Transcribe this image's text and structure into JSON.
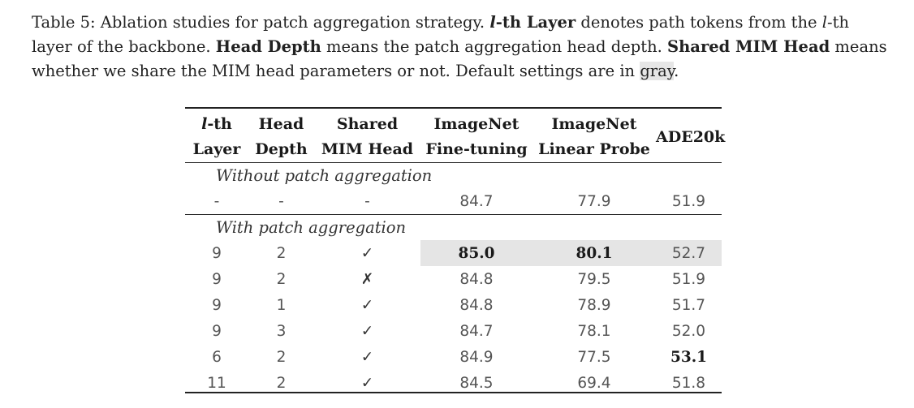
{
  "caption": {
    "label": "Table 5: Ablation studies for patch aggregation strategy.",
    "lth_italic": "l",
    "lth_bold_rest": "-th Layer",
    "part2a": " denotes path tokens from the ",
    "lth2_italic": "l",
    "part2b": "-th layer of the backbone. ",
    "head_depth": "Head Depth",
    "part3": " means the patch aggregation head depth. ",
    "shared_mim": "Shared MIM Head",
    "part4": " means whether we share the MIM head parameters or not. Default settings are in ",
    "gray_word": "gray",
    "part5": "."
  },
  "table": {
    "headers": [
      {
        "line1_italic": "l",
        "line1_rest": "-th",
        "line2": "Layer"
      },
      {
        "line1": "Head",
        "line2": "Depth"
      },
      {
        "line1": "Shared",
        "line2": "MIM Head"
      },
      {
        "line1": "ImageNet",
        "line2": "Fine-tuning"
      },
      {
        "line1": "ImageNet",
        "line2": "Linear Probe"
      },
      {
        "line1": "ADE20k"
      }
    ],
    "section1": "Without patch aggregation",
    "row_baseline": [
      "-",
      "-",
      "-",
      "84.7",
      "77.9",
      "51.9"
    ],
    "section2": "With patch aggregation",
    "rows": [
      [
        "9",
        "2",
        "✓",
        "85.0",
        "80.1",
        "52.7"
      ],
      [
        "9",
        "2",
        "✗",
        "84.8",
        "79.5",
        "51.9"
      ],
      [
        "9",
        "1",
        "✓",
        "84.8",
        "78.9",
        "51.7"
      ],
      [
        "9",
        "3",
        "✓",
        "84.7",
        "78.1",
        "52.0"
      ],
      [
        "6",
        "2",
        "✓",
        "84.9",
        "77.5",
        "53.1"
      ],
      [
        "11",
        "2",
        "✓",
        "84.5",
        "69.4",
        "51.8"
      ]
    ],
    "default_highlight_color": "#e5e5e5"
  }
}
